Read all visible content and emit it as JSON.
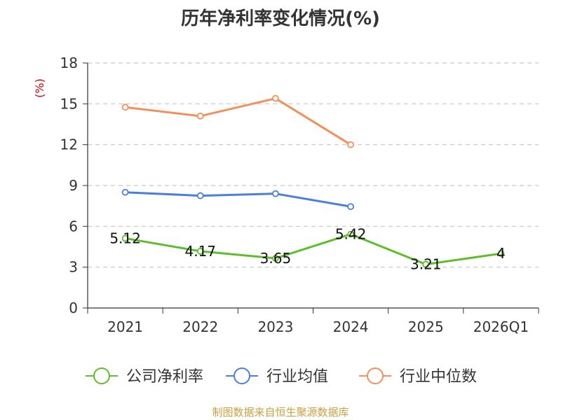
{
  "source_note": "制图数据来自恒生聚源数据库",
  "chart_data": {
    "type": "line",
    "title": "历年净利率变化情况(%)",
    "ylabel": "(%)",
    "xlabel": "",
    "categories": [
      "2021",
      "2022",
      "2023",
      "2024",
      "2025",
      "2026Q1"
    ],
    "ylim": [
      0,
      18
    ],
    "yticks": [
      0,
      3,
      6,
      9,
      12,
      15,
      18
    ],
    "grid": true,
    "legend_position": "bottom",
    "series": [
      {
        "name": "公司净利率",
        "color": "#5cbf2a",
        "values": [
          5.12,
          4.17,
          3.65,
          5.42,
          3.21,
          4
        ],
        "labels": [
          "5.12",
          "4.17",
          "3.65",
          "5.42",
          "3.21",
          "4"
        ]
      },
      {
        "name": "行业均值",
        "color": "#4b7fde",
        "values": [
          8.5,
          8.25,
          8.4,
          7.45,
          null,
          null
        ]
      },
      {
        "name": "行业中位数",
        "color": "#f58e5a",
        "values": [
          14.75,
          14.1,
          15.4,
          12.0,
          null,
          null
        ]
      }
    ]
  }
}
